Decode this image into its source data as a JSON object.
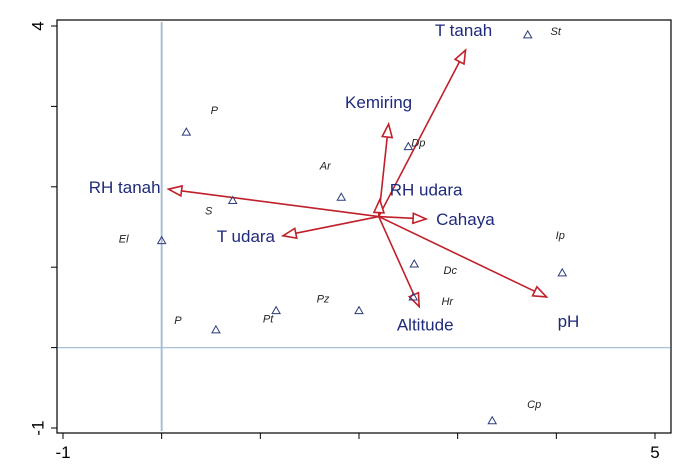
{
  "chart_data": {
    "type": "scatter",
    "subtype": "biplot",
    "xlim": [
      -1,
      5
    ],
    "ylim": [
      -1,
      4
    ],
    "x_ticks": [
      -1,
      5
    ],
    "y_ticks": [
      -1,
      4
    ],
    "x_tick_labels": [
      "-1",
      "5"
    ],
    "y_tick_labels": [
      "-1",
      "4"
    ],
    "grid": false,
    "reference_lines": {
      "x": 0,
      "y": 0
    },
    "colors": {
      "vector": "#c0202a",
      "label": "#1f2a7a",
      "site": "#2c3b7a",
      "reference": "#a9c0d4"
    },
    "origin": [
      2.2,
      1.63
    ],
    "vectors": [
      {
        "label": "T tanah",
        "x": 3.08,
        "y": 3.7
      },
      {
        "label": "Kemiring",
        "x": 2.3,
        "y": 2.78
      },
      {
        "label": "RH tanah",
        "x": 0.07,
        "y": 1.97
      },
      {
        "label": "RH udara",
        "x": 2.21,
        "y": 1.84
      },
      {
        "label": "Cahaya",
        "x": 2.68,
        "y": 1.6
      },
      {
        "label": "T udara",
        "x": 1.23,
        "y": 1.39
      },
      {
        "label": "pH",
        "x": 3.9,
        "y": 0.63
      },
      {
        "label": "Altitude",
        "x": 2.61,
        "y": 0.51
      }
    ],
    "sites": [
      {
        "label": "St",
        "x": 3.71,
        "y": 3.89
      },
      {
        "label": "P",
        "x": 0.25,
        "y": 2.68
      },
      {
        "label": "Ar",
        "x": 1.82,
        "y": 1.87
      },
      {
        "label": "Dp",
        "x": 2.5,
        "y": 2.5
      },
      {
        "label": "S",
        "x": 0.72,
        "y": 1.83
      },
      {
        "label": "El",
        "x": 0,
        "y": 1.33
      },
      {
        "label": "Ip",
        "x": 4.06,
        "y": 0.93
      },
      {
        "label": "Dc",
        "x": 2.56,
        "y": 1.04
      },
      {
        "label": "Pz",
        "x": 2.0,
        "y": 0.46
      },
      {
        "label": "Hr",
        "x": 2.55,
        "y": 0.63
      },
      {
        "label": "P",
        "x": 0.55,
        "y": 0.22
      },
      {
        "label": "Pt",
        "x": 1.16,
        "y": 0.46
      },
      {
        "label": "Cp",
        "x": 3.35,
        "y": -0.91
      }
    ]
  }
}
